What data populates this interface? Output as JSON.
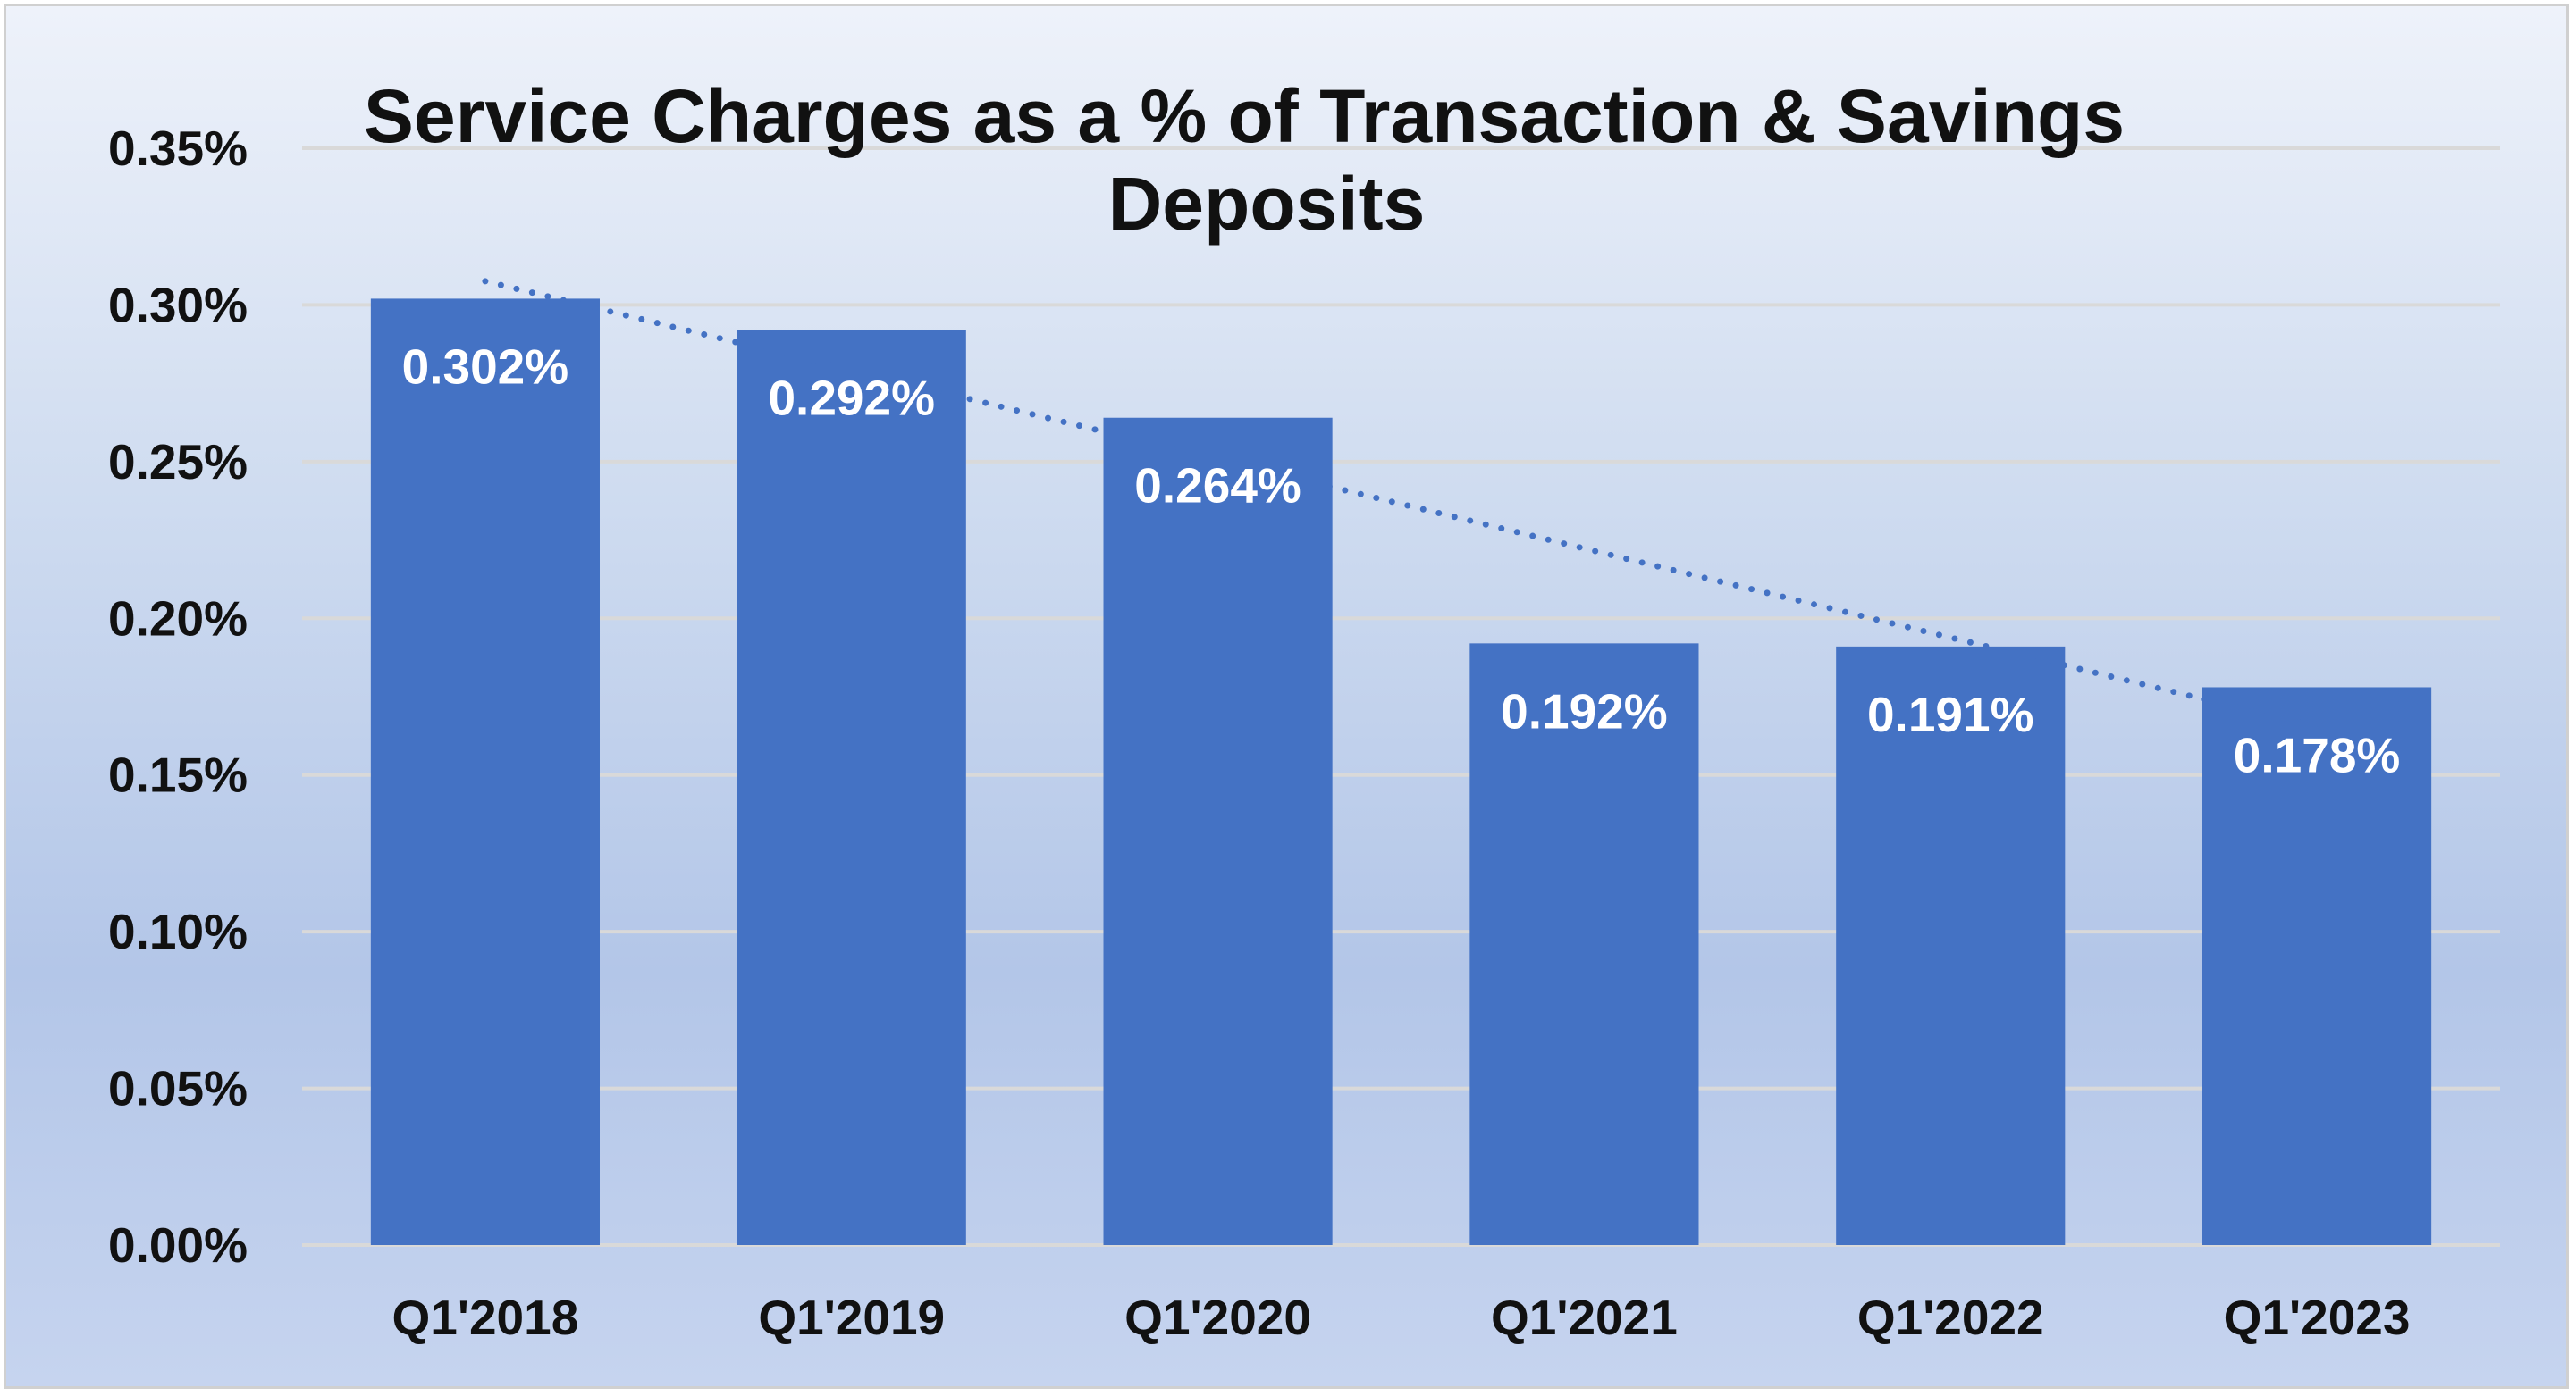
{
  "chart_data": {
    "type": "bar",
    "title_line1": "Service Charges as a % of Transaction & Savings",
    "title_line2": "Deposits",
    "categories": [
      "Q1'2018",
      "Q1'2019",
      "Q1'2020",
      "Q1'2021",
      "Q1'2022",
      "Q1'2023"
    ],
    "values": [
      0.302,
      0.292,
      0.264,
      0.192,
      0.191,
      0.178
    ],
    "data_labels": [
      "0.302%",
      "0.292%",
      "0.264%",
      "0.192%",
      "0.191%",
      "0.178%"
    ],
    "ylim": [
      0,
      0.35
    ],
    "y_ticks": [
      0.0,
      0.05,
      0.1,
      0.15,
      0.2,
      0.25,
      0.3,
      0.35
    ],
    "y_tick_labels": [
      "0.00%",
      "0.05%",
      "0.10%",
      "0.15%",
      "0.20%",
      "0.25%",
      "0.30%",
      "0.35%"
    ],
    "grid": true,
    "trendline": "linear, dotted",
    "legend": "none",
    "colors": {
      "bar": "#4472c4",
      "trendline": "#4472c4",
      "gridline": "#d9d9d9",
      "label_text": "#ffffff"
    }
  }
}
